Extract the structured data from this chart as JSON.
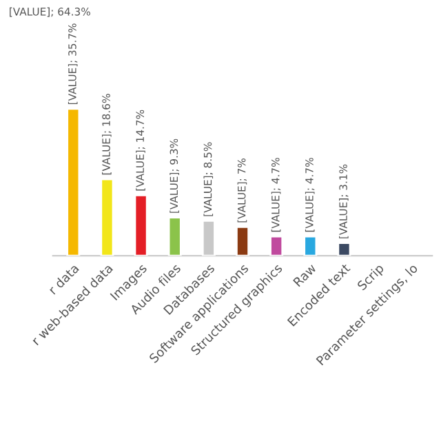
{
  "chart_data": {
    "type": "bar",
    "categories": [
      "r data",
      "r web-based data",
      "Images",
      "Audio files",
      "Databases",
      "Software applications",
      "Structured graphics",
      "Raw",
      "Encoded text",
      "Scrip",
      "Parameter settings, lo"
    ],
    "values": [
      35.7,
      18.6,
      14.7,
      9.3,
      8.5,
      7,
      4.7,
      4.7,
      3.1,
      null,
      null
    ],
    "colors": [
      "#f5b800",
      "#f2e619",
      "#e41e26",
      "#8bc34a",
      "#c8c8c8",
      "#8b3a12",
      "#c04a9e",
      "#29a8e0",
      "#3c4a63",
      "#888888",
      "#888888"
    ],
    "value_labels": [
      "[VALUE]; 35.7%",
      "[VALUE]; 18.6%",
      "[VALUE]; 14.7%",
      "[VALUE]; 9.3%",
      "[VALUE]; 8.5%",
      "[VALUE]; 7%",
      "[VALUE]; 4.7%",
      "[VALUE]; 4.7%",
      "[VALUE]; 3.1%",
      null,
      null
    ],
    "annotations": [
      "[VALUE]; 64.3%"
    ],
    "tick_labels": "x"
  }
}
